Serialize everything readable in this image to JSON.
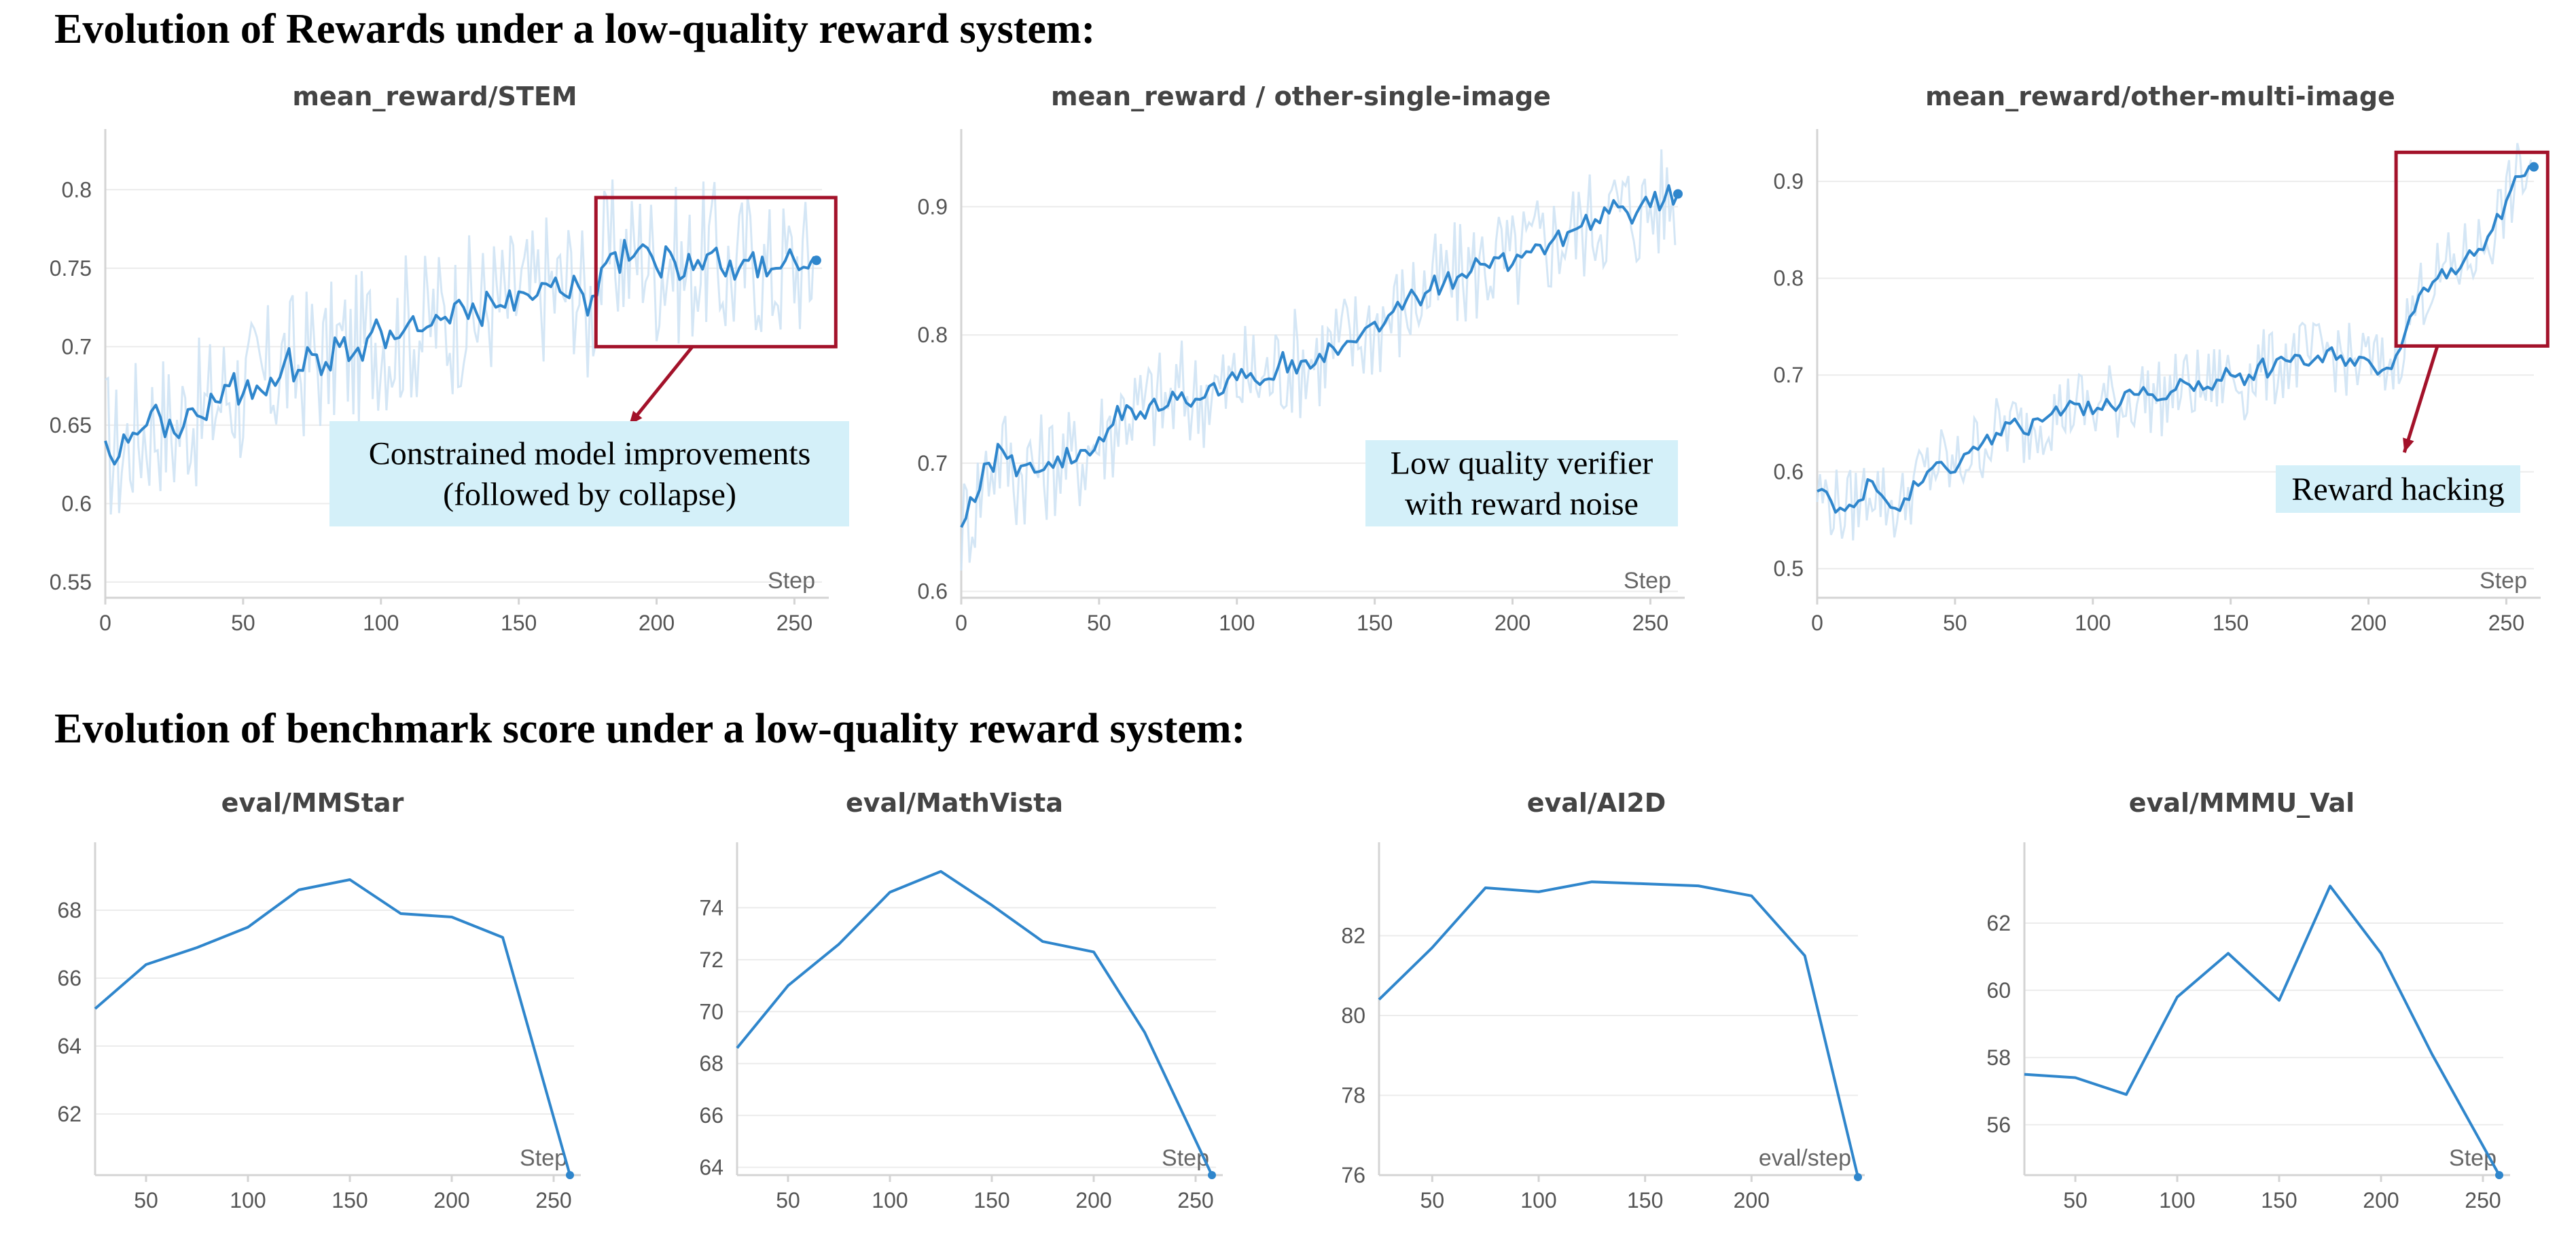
{
  "sections": {
    "rewards_title": "Evolution of Rewards under a low-quality reward system:",
    "bench_title": "Evolution of benchmark score under a low-quality reward system:"
  },
  "colors": {
    "line": "#2f86cc",
    "raw": "#cfe3f4",
    "highlight": "#a3122a",
    "annotation_bg": "#d4f0f9"
  },
  "chart_data": [
    {
      "id": "stem",
      "type": "line",
      "title": "mean_reward/STEM",
      "xlabel": "Step",
      "xlim": [
        0,
        260
      ],
      "ylim": [
        0.54,
        0.83
      ],
      "xticks": [
        0,
        50,
        100,
        150,
        200,
        250
      ],
      "yticks": [
        0.55,
        0.6,
        0.65,
        0.7,
        0.75,
        0.8
      ],
      "ytick_labels": [
        "0.55",
        "0.6",
        "0.65",
        "0.7",
        "0.75",
        "0.8"
      ],
      "series_smooth": {
        "x": [
          0,
          5,
          10,
          15,
          20,
          25,
          30,
          35,
          40,
          45,
          50,
          55,
          60,
          65,
          70,
          75,
          80,
          85,
          90,
          95,
          100,
          105,
          110,
          115,
          120,
          125,
          130,
          135,
          140,
          145,
          150,
          155,
          160,
          165,
          170,
          175,
          180,
          185,
          190,
          195,
          200,
          205,
          210,
          215,
          220,
          225,
          230,
          235,
          240,
          245,
          250,
          255,
          258
        ],
        "y": [
          0.64,
          0.63,
          0.645,
          0.65,
          0.655,
          0.645,
          0.66,
          0.655,
          0.665,
          0.675,
          0.67,
          0.675,
          0.68,
          0.69,
          0.685,
          0.695,
          0.69,
          0.7,
          0.695,
          0.705,
          0.71,
          0.705,
          0.715,
          0.71,
          0.72,
          0.715,
          0.725,
          0.72,
          0.73,
          0.725,
          0.735,
          0.73,
          0.74,
          0.735,
          0.745,
          0.72,
          0.75,
          0.76,
          0.755,
          0.765,
          0.75,
          0.76,
          0.745,
          0.755,
          0.76,
          0.745,
          0.75,
          0.76,
          0.745,
          0.75,
          0.755,
          0.75,
          0.755
        ]
      },
      "highlight": {
        "x": [
          178,
          265
        ],
        "y": [
          0.7,
          0.795
        ]
      },
      "arrow": {
        "from": [
          213,
          0.7
        ],
        "to": [
          190,
          0.65
        ]
      },
      "annotation": {
        "lines": [
          "Constrained model improvements",
          "(followed by collapse)"
        ],
        "anchor": "middle-right"
      }
    },
    {
      "id": "single",
      "type": "line",
      "title": "mean_reward / other-single-image",
      "xlabel": "Step",
      "xlim": [
        0,
        260
      ],
      "ylim": [
        0.595,
        0.95
      ],
      "xticks": [
        0,
        50,
        100,
        150,
        200,
        250
      ],
      "yticks": [
        0.6,
        0.7,
        0.8,
        0.9
      ],
      "ytick_labels": [
        "0.6",
        "0.7",
        "0.8",
        "0.9"
      ],
      "series_smooth": {
        "x": [
          0,
          5,
          10,
          15,
          20,
          25,
          30,
          35,
          40,
          45,
          50,
          55,
          60,
          65,
          70,
          75,
          80,
          85,
          90,
          95,
          100,
          105,
          110,
          115,
          120,
          125,
          130,
          135,
          140,
          145,
          150,
          155,
          160,
          165,
          170,
          175,
          180,
          185,
          190,
          195,
          200,
          205,
          210,
          215,
          220,
          225,
          230,
          235,
          240,
          245,
          250,
          255,
          260
        ],
        "y": [
          0.65,
          0.67,
          0.7,
          0.71,
          0.69,
          0.7,
          0.695,
          0.705,
          0.7,
          0.71,
          0.72,
          0.73,
          0.745,
          0.74,
          0.75,
          0.745,
          0.755,
          0.75,
          0.76,
          0.755,
          0.765,
          0.77,
          0.765,
          0.775,
          0.78,
          0.78,
          0.785,
          0.79,
          0.795,
          0.8,
          0.81,
          0.815,
          0.82,
          0.83,
          0.835,
          0.84,
          0.845,
          0.85,
          0.855,
          0.86,
          0.855,
          0.865,
          0.87,
          0.875,
          0.88,
          0.885,
          0.89,
          0.895,
          0.9,
          0.895,
          0.9,
          0.905,
          0.91
        ]
      },
      "annotation": {
        "lines": [
          "Low quality verifier",
          "with reward noise"
        ],
        "anchor": "bottom-right"
      }
    },
    {
      "id": "multi",
      "type": "line",
      "title": "mean_reward/other-multi-image",
      "xlabel": "Step",
      "xlim": [
        0,
        260
      ],
      "ylim": [
        0.47,
        0.94
      ],
      "xticks": [
        0,
        50,
        100,
        150,
        200,
        250
      ],
      "yticks": [
        0.5,
        0.6,
        0.7,
        0.8,
        0.9
      ],
      "ytick_labels": [
        "0.5",
        "0.6",
        "0.7",
        "0.8",
        "0.9"
      ],
      "series_smooth": {
        "x": [
          0,
          5,
          10,
          15,
          20,
          25,
          30,
          35,
          40,
          45,
          50,
          55,
          60,
          65,
          70,
          75,
          80,
          85,
          90,
          95,
          100,
          105,
          110,
          115,
          120,
          125,
          130,
          135,
          140,
          145,
          150,
          155,
          160,
          165,
          170,
          175,
          180,
          185,
          190,
          195,
          200,
          205,
          210,
          215,
          220,
          225,
          230,
          235,
          240,
          245,
          250,
          255,
          260
        ],
        "y": [
          0.58,
          0.57,
          0.56,
          0.57,
          0.59,
          0.57,
          0.56,
          0.59,
          0.6,
          0.61,
          0.6,
          0.62,
          0.63,
          0.64,
          0.65,
          0.64,
          0.655,
          0.66,
          0.665,
          0.67,
          0.66,
          0.675,
          0.67,
          0.68,
          0.68,
          0.675,
          0.685,
          0.69,
          0.685,
          0.695,
          0.7,
          0.69,
          0.71,
          0.705,
          0.715,
          0.72,
          0.715,
          0.725,
          0.72,
          0.71,
          0.715,
          0.705,
          0.72,
          0.76,
          0.79,
          0.8,
          0.81,
          0.82,
          0.83,
          0.85,
          0.88,
          0.905,
          0.915
        ]
      },
      "highlight": {
        "x": [
          210,
          265
        ],
        "y": [
          0.73,
          0.93
        ]
      },
      "arrow": {
        "from": [
          225,
          0.73
        ],
        "to": [
          213,
          0.62
        ]
      },
      "annotation": {
        "lines": [
          "Reward hacking"
        ],
        "anchor": "lower-right"
      }
    },
    {
      "id": "mmstar",
      "type": "line",
      "title": "eval/MMStar",
      "xlabel": "Step",
      "xlim": [
        25,
        260
      ],
      "ylim": [
        60.2,
        69.6
      ],
      "xticks": [
        50,
        100,
        150,
        200,
        250
      ],
      "yticks": [
        62,
        64,
        66,
        68
      ],
      "ytick_labels": [
        "62",
        "64",
        "66",
        "68"
      ],
      "x": [
        25,
        50,
        75,
        100,
        125,
        150,
        175,
        200,
        225,
        258
      ],
      "y": [
        65.1,
        66.4,
        66.9,
        67.5,
        68.6,
        68.9,
        67.9,
        67.8,
        67.2,
        60.2
      ]
    },
    {
      "id": "mathvista",
      "type": "line",
      "title": "eval/MathVista",
      "xlabel": "Step",
      "xlim": [
        25,
        260
      ],
      "ylim": [
        63.7,
        76
      ],
      "xticks": [
        50,
        100,
        150,
        200,
        250
      ],
      "yticks": [
        64,
        66,
        68,
        70,
        72,
        74
      ],
      "ytick_labels": [
        "64",
        "66",
        "68",
        "70",
        "72",
        "74"
      ],
      "x": [
        25,
        50,
        75,
        100,
        125,
        150,
        175,
        200,
        225,
        258
      ],
      "y": [
        68.6,
        71.0,
        72.6,
        74.6,
        75.4,
        74.1,
        72.7,
        72.3,
        69.2,
        63.7
      ]
    },
    {
      "id": "ai2d",
      "type": "line",
      "title": "eval/AI2D",
      "xlabel": "eval/step",
      "xlim": [
        25,
        250
      ],
      "ylim": [
        76,
        84
      ],
      "xticks": [
        50,
        100,
        150,
        200
      ],
      "yticks": [
        76,
        78,
        80,
        82
      ],
      "ytick_labels": [
        "76",
        "78",
        "80",
        "82"
      ],
      "x": [
        25,
        50,
        75,
        100,
        125,
        150,
        175,
        200,
        225,
        250
      ],
      "y": [
        80.4,
        81.7,
        83.2,
        83.1,
        83.35,
        83.3,
        83.25,
        83.0,
        81.5,
        75.95
      ]
    },
    {
      "id": "mmmu",
      "type": "line",
      "title": "eval/MMMU_Val",
      "xlabel": "Step",
      "xlim": [
        25,
        260
      ],
      "ylim": [
        54.5,
        64
      ],
      "xticks": [
        50,
        100,
        150,
        200,
        250
      ],
      "yticks": [
        56,
        58,
        60,
        62
      ],
      "ytick_labels": [
        "56",
        "58",
        "60",
        "62"
      ],
      "x": [
        25,
        50,
        75,
        100,
        125,
        150,
        175,
        200,
        225,
        258
      ],
      "y": [
        57.5,
        57.4,
        56.9,
        59.8,
        61.1,
        59.7,
        63.1,
        61.1,
        58.1,
        54.5
      ]
    }
  ]
}
